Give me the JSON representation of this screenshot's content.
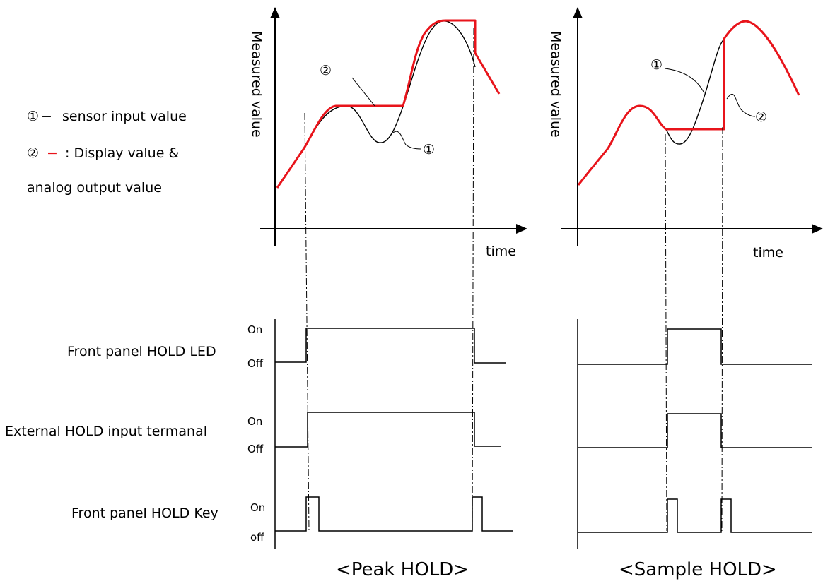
{
  "legend": {
    "sensor_marker": "①",
    "sensor_dash": "−",
    "sensor_text": "sensor input value",
    "display_marker": "②",
    "display_dash": "−",
    "display_text": ": Display value &",
    "display_text2": "analog output value"
  },
  "peak": {
    "ylabel": "Measured value",
    "xlabel": "time",
    "callout_sensor": "①",
    "callout_display": "②",
    "caption": "<Peak HOLD>"
  },
  "sample": {
    "ylabel": "Measured value",
    "xlabel": "time",
    "callout_sensor": "①",
    "callout_display": "②",
    "caption": "<Sample HOLD>"
  },
  "timing": {
    "row_led": "Front panel HOLD LED",
    "row_ext": "External HOLD input termanal",
    "row_key": "Front panel HOLD Key",
    "on": "On",
    "off": "Off",
    "off_lower": "off"
  },
  "colors": {
    "display": "#e8141b",
    "sensor": "#000000"
  }
}
